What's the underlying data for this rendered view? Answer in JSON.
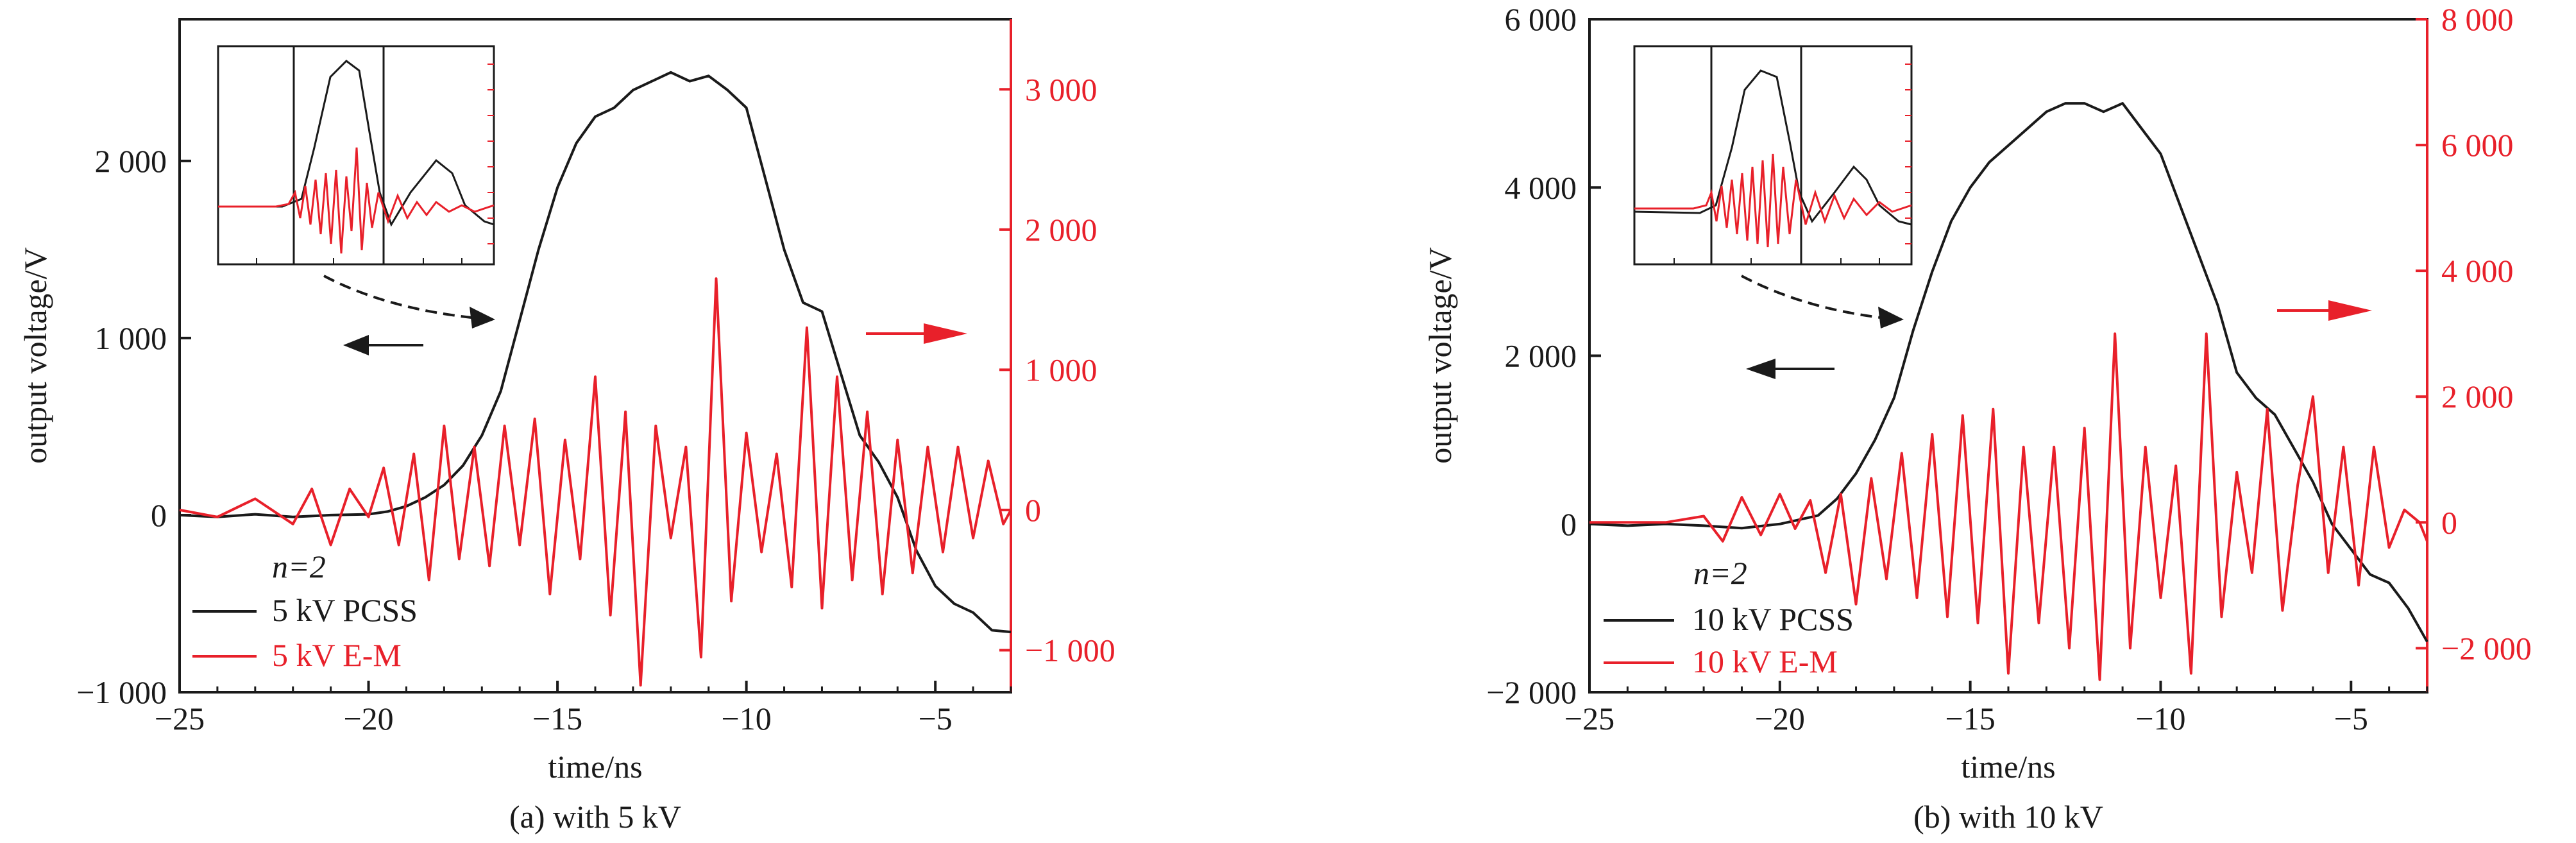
{
  "colors": {
    "pcss": "#1a1a1a",
    "em": "#e8202a"
  },
  "chart_data": [
    {
      "type": "line",
      "caption": "(a) with 5 kV",
      "xlabel": "time/ns",
      "ylabel": "output voltage/V",
      "xlim": [
        -25,
        -3
      ],
      "ylim_left": [
        -1000,
        2800
      ],
      "ylim_right": [
        -1300,
        3500
      ],
      "xticks": [
        -25,
        -20,
        -15,
        -10,
        -5
      ],
      "xtick_labels": [
        "−25",
        "−20",
        "−15",
        "−10",
        "−5"
      ],
      "yticks_left": [
        -1000,
        0,
        1000,
        2000
      ],
      "ytick_labels_left": [
        "−1 000",
        "0",
        "1 000",
        "2 000"
      ],
      "yticks_right": [
        -1000,
        0,
        1000,
        2000,
        3000
      ],
      "ytick_labels_right": [
        "−1 000",
        "0",
        "1 000",
        "2 000",
        "3 000"
      ],
      "legend_note": "n=2",
      "series": [
        {
          "name": "5 kV PCSS",
          "axis": "left",
          "x": [
            -25,
            -24,
            -23,
            -22,
            -21,
            -20,
            -19.5,
            -19,
            -18.5,
            -18,
            -17.5,
            -17,
            -16.5,
            -16,
            -15.5,
            -15,
            -14.5,
            -14,
            -13.5,
            -13,
            -12.5,
            -12,
            -11.5,
            -11,
            -10.5,
            -10,
            -9.5,
            -9,
            -8.5,
            -8,
            -7.5,
            -7,
            -6.5,
            -6,
            -5.5,
            -5,
            -4.5,
            -4,
            -3.5,
            -3
          ],
          "y": [
            0,
            -10,
            5,
            -10,
            0,
            5,
            20,
            50,
            100,
            170,
            280,
            450,
            700,
            1100,
            1500,
            1850,
            2100,
            2250,
            2300,
            2400,
            2450,
            2500,
            2450,
            2480,
            2400,
            2300,
            1900,
            1500,
            1200,
            1150,
            800,
            450,
            300,
            100,
            -200,
            -400,
            -500,
            -550,
            -650,
            -660
          ]
        },
        {
          "name": "5 kV E-M",
          "axis": "right",
          "x": [
            -25,
            -24,
            -23,
            -22,
            -21.5,
            -21,
            -20.5,
            -20,
            -19.6,
            -19.2,
            -18.8,
            -18.4,
            -18,
            -17.6,
            -17.2,
            -16.8,
            -16.4,
            -16,
            -15.6,
            -15.2,
            -14.8,
            -14.4,
            -14,
            -13.6,
            -13.2,
            -12.8,
            -12.4,
            -12,
            -11.6,
            -11.2,
            -10.8,
            -10.4,
            -10,
            -9.6,
            -9.2,
            -8.8,
            -8.4,
            -8,
            -7.6,
            -7.2,
            -6.8,
            -6.4,
            -6,
            -5.6,
            -5.2,
            -4.8,
            -4.4,
            -4,
            -3.6,
            -3.2,
            -3
          ],
          "y": [
            0,
            -50,
            80,
            -100,
            150,
            -250,
            150,
            -50,
            300,
            -250,
            400,
            -500,
            600,
            -350,
            450,
            -400,
            600,
            -250,
            650,
            -600,
            500,
            -350,
            950,
            -750,
            700,
            -1250,
            600,
            -200,
            450,
            -1050,
            1650,
            -650,
            550,
            -300,
            400,
            -550,
            1300,
            -700,
            950,
            -500,
            700,
            -600,
            500,
            -450,
            450,
            -300,
            450,
            -200,
            350,
            -100,
            0
          ]
        }
      ]
    },
    {
      "type": "line",
      "caption": "(b) with 10 kV",
      "xlabel": "time/ns",
      "ylabel": "output voltage/V",
      "xlim": [
        -25,
        -3
      ],
      "ylim_left": [
        -2000,
        6000
      ],
      "ylim_right": [
        -2700,
        8000
      ],
      "xticks": [
        -25,
        -20,
        -15,
        -10,
        -5
      ],
      "xtick_labels": [
        "−25",
        "−20",
        "−15",
        "−10",
        "−5"
      ],
      "yticks_left": [
        -2000,
        0,
        2000,
        4000,
        6000
      ],
      "ytick_labels_left": [
        "−2 000",
        "0",
        "2 000",
        "4 000",
        "6 000"
      ],
      "yticks_right": [
        -2000,
        0,
        2000,
        4000,
        6000,
        8000
      ],
      "ytick_labels_right": [
        "−2 000",
        "0",
        "2 000",
        "4 000",
        "6 000",
        "8 000"
      ],
      "legend_note": "n=2",
      "series": [
        {
          "name": "10 kV PCSS",
          "axis": "left",
          "x": [
            -25,
            -24,
            -23,
            -22,
            -21,
            -20,
            -19.5,
            -19,
            -18.5,
            -18,
            -17.5,
            -17,
            -16.5,
            -16,
            -15.5,
            -15,
            -14.5,
            -14,
            -13.5,
            -13,
            -12.5,
            -12,
            -11.5,
            -11,
            -10.5,
            -10,
            -9.5,
            -9,
            -8.5,
            -8,
            -7.5,
            -7,
            -6.5,
            -6,
            -5.5,
            -5,
            -4.5,
            -4,
            -3.5,
            -3
          ],
          "y": [
            0,
            -20,
            0,
            -20,
            -50,
            0,
            50,
            100,
            300,
            600,
            1000,
            1500,
            2300,
            3000,
            3600,
            4000,
            4300,
            4500,
            4700,
            4900,
            5000,
            5000,
            4900,
            5000,
            4700,
            4400,
            3800,
            3200,
            2600,
            1800,
            1500,
            1300,
            900,
            500,
            0,
            -300,
            -600,
            -700,
            -1000,
            -1400
          ]
        },
        {
          "name": "10 kV E-M",
          "axis": "right",
          "x": [
            -25,
            -24,
            -23,
            -22,
            -21.5,
            -21,
            -20.5,
            -20,
            -19.6,
            -19.2,
            -18.8,
            -18.4,
            -18,
            -17.6,
            -17.2,
            -16.8,
            -16.4,
            -16,
            -15.6,
            -15.2,
            -14.8,
            -14.4,
            -14,
            -13.6,
            -13.2,
            -12.8,
            -12.4,
            -12,
            -11.6,
            -11.2,
            -10.8,
            -10.4,
            -10,
            -9.6,
            -9.2,
            -8.8,
            -8.4,
            -8,
            -7.6,
            -7.2,
            -6.8,
            -6.4,
            -6,
            -5.6,
            -5.2,
            -4.8,
            -4.4,
            -4,
            -3.6,
            -3.2,
            -3
          ],
          "y": [
            0,
            0,
            0,
            100,
            -300,
            400,
            -200,
            450,
            -100,
            350,
            -800,
            450,
            -1300,
            700,
            -900,
            1100,
            -1200,
            1400,
            -1500,
            1700,
            -1600,
            1800,
            -2400,
            1200,
            -1600,
            1200,
            -2000,
            1500,
            -2500,
            3000,
            -2000,
            1200,
            -1200,
            900,
            -2400,
            3000,
            -1500,
            800,
            -800,
            1800,
            -1400,
            600,
            2000,
            -800,
            1200,
            -1000,
            1200,
            -400,
            200,
            0,
            -300
          ]
        }
      ]
    }
  ]
}
